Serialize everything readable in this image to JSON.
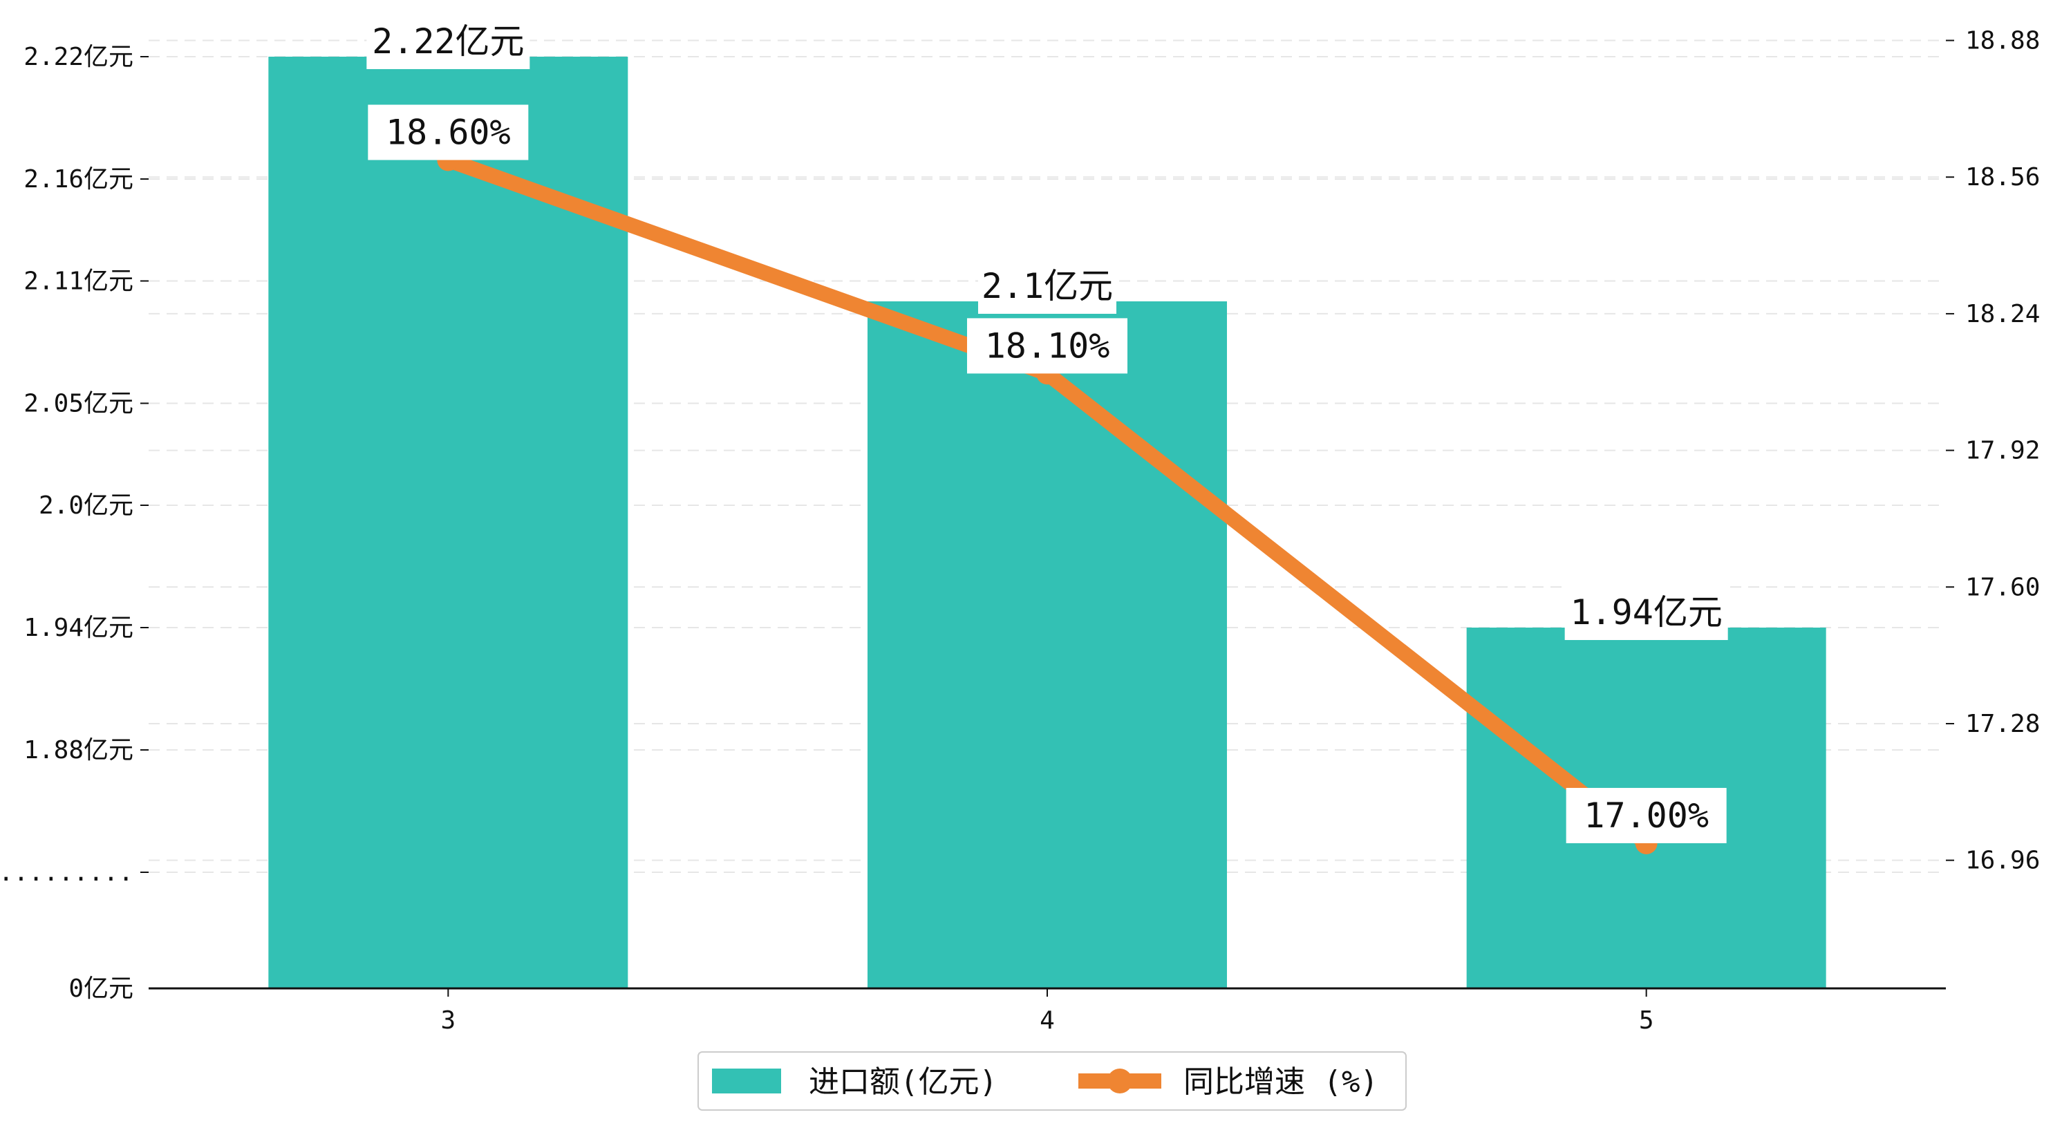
{
  "chart_data": {
    "type": "bar",
    "categories": [
      "3",
      "4",
      "5"
    ],
    "series": [
      {
        "name": "进口额(亿元)",
        "type": "bar",
        "axis": "left",
        "values": [
          2.22,
          2.1,
          1.94
        ],
        "labels": [
          "2.22亿元",
          "2.1亿元",
          "1.94亿元"
        ]
      },
      {
        "name": "同比增速 (%)",
        "type": "line",
        "axis": "right",
        "values": [
          18.6,
          18.1,
          17.0
        ],
        "labels": [
          "18.60%",
          "18.10%",
          "17.00%"
        ]
      }
    ],
    "left_axis": {
      "ticks": [
        {
          "value": 1.82,
          "label": "........."
        },
        {
          "value": 1.88,
          "label": "1.88亿元"
        },
        {
          "value": 1.94,
          "label": "1.94亿元"
        },
        {
          "value": 2.0,
          "label": "2.0亿元"
        },
        {
          "value": 2.05,
          "label": "2.05亿元"
        },
        {
          "value": 2.11,
          "label": "2.11亿元"
        },
        {
          "value": 2.16,
          "label": "2.16亿元"
        },
        {
          "value": 2.22,
          "label": "2.22亿元"
        }
      ],
      "baseline_label": "0亿元",
      "broken": true
    },
    "right_axis": {
      "ticks": [
        16.96,
        17.28,
        17.6,
        17.92,
        18.24,
        18.56,
        18.88
      ],
      "tick_labels": [
        "16.96",
        "17.28",
        "17.60",
        "17.92",
        "18.24",
        "18.56",
        "18.88"
      ],
      "range": [
        16.66,
        18.91
      ]
    },
    "grid": "horizontal dashed",
    "legend": "bottom-center",
    "colors": {
      "bar": "#33c1b4",
      "line": "#ef8532",
      "axis": "#111111",
      "grid": "#e6e6e6"
    }
  }
}
